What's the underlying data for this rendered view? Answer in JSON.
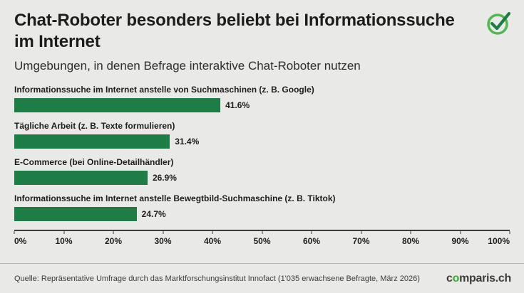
{
  "header": {
    "title": "Chat-Roboter besonders beliebt bei Informationssuche im Internet",
    "subtitle": "Umgebungen, in denen Befrage interaktive Chat-Roboter nutzen"
  },
  "chart_data": {
    "type": "bar",
    "orientation": "horizontal",
    "title": "Chat-Roboter besonders beliebt bei Informationssuche im Internet",
    "subtitle": "Umgebungen, in denen Befrage interaktive Chat-Roboter nutzen",
    "categories": [
      "Informationssuche im Internet anstelle von Suchmaschinen (z. B. Google)",
      "Tägliche Arbeit (z. B. Texte formulieren)",
      "E-Commerce (bei Online-Detailhändler)",
      "Informationssuche im Internet anstelle Bewegtbild-Suchmaschine (z. B. Tiktok)"
    ],
    "values": [
      41.6,
      31.4,
      26.9,
      24.7
    ],
    "value_labels": [
      "41.6%",
      "31.4%",
      "26.9%",
      "24.7%"
    ],
    "xlim": [
      0,
      100
    ],
    "x_ticks": [
      "0%",
      "10%",
      "20%",
      "30%",
      "40%",
      "50%",
      "60%",
      "70%",
      "80%",
      "90%",
      "100%"
    ],
    "xlabel": "",
    "ylabel": "",
    "grid": false,
    "legend": false,
    "bar_color": "#1e7d46"
  },
  "footer": {
    "source": "Quelle: Repräsentative Umfrage durch das Marktforschungsinstitut Innofact (1'035 erwachsene Befragte, März 2026)",
    "logo": {
      "prefix": "c",
      "o": "o",
      "suffix": "mparis.ch"
    }
  },
  "colors": {
    "background": "#e9e9e8",
    "bar": "#1e7d46",
    "title_text": "#1d1d1b",
    "accent_green": "#3aaa35",
    "check_ring": "#52b84d",
    "check_mark": "#1e7d46"
  }
}
